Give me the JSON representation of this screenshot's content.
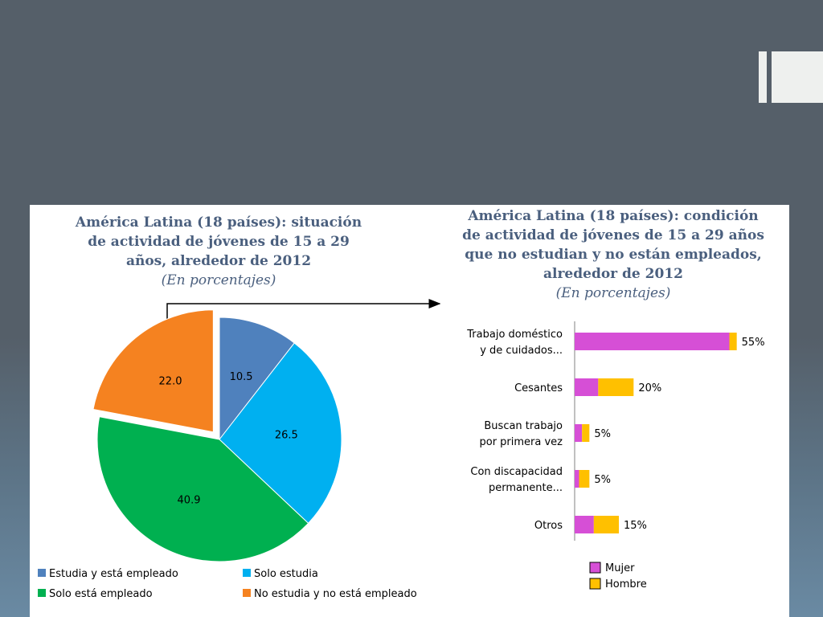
{
  "colors": {
    "blue": "#4f81bd",
    "cyan": "#00b0f0",
    "green": "#00b050",
    "orange": "#f58220",
    "mujer": "#d64fd6",
    "hombre": "#ffc000"
  },
  "chart_data": [
    {
      "type": "pie",
      "title": "América Latina (18 países): situación de actividad de jóvenes de 15 a 29 años, alrededor de 2012",
      "subtitle": "(En porcentajes)",
      "labels": [
        "Estudia y está empleado",
        "Solo estudia",
        "Solo está empleado",
        "No estudia y no está empleado"
      ],
      "values": [
        10.5,
        26.5,
        40.9,
        22.0
      ],
      "value_labels": [
        "10.5",
        "26.5",
        "40.9",
        "22.0"
      ],
      "colors": [
        "#4f81bd",
        "#00b0f0",
        "#00b050",
        "#f58220"
      ],
      "exploded": "No estudia y no está empleado",
      "legend": "bottom"
    },
    {
      "type": "bar",
      "orientation": "horizontal",
      "stacked": true,
      "title": "América Latina (18 países): condición de actividad de jóvenes de 15 a 29 años que no estudian y no están empleados, alrededor de 2012",
      "subtitle": "(En porcentajes)",
      "categories": [
        [
          "Trabajo doméstico",
          "y de cuidados..."
        ],
        [
          "Cesantes"
        ],
        [
          "Buscan trabajo",
          "por primera vez"
        ],
        [
          "Con discapacidad",
          "permanente..."
        ],
        [
          "Otros"
        ]
      ],
      "series": [
        {
          "name": "Mujer",
          "values": [
            52.5,
            8,
            2.5,
            1.5,
            6.5
          ]
        },
        {
          "name": "Hombre",
          "values": [
            2.5,
            12,
            2.5,
            3.5,
            8.5
          ]
        }
      ],
      "totals": [
        "55%",
        "20%",
        "5%",
        "5%",
        "15%"
      ],
      "xlim": [
        0,
        60
      ],
      "legend": "bottom-left"
    }
  ]
}
